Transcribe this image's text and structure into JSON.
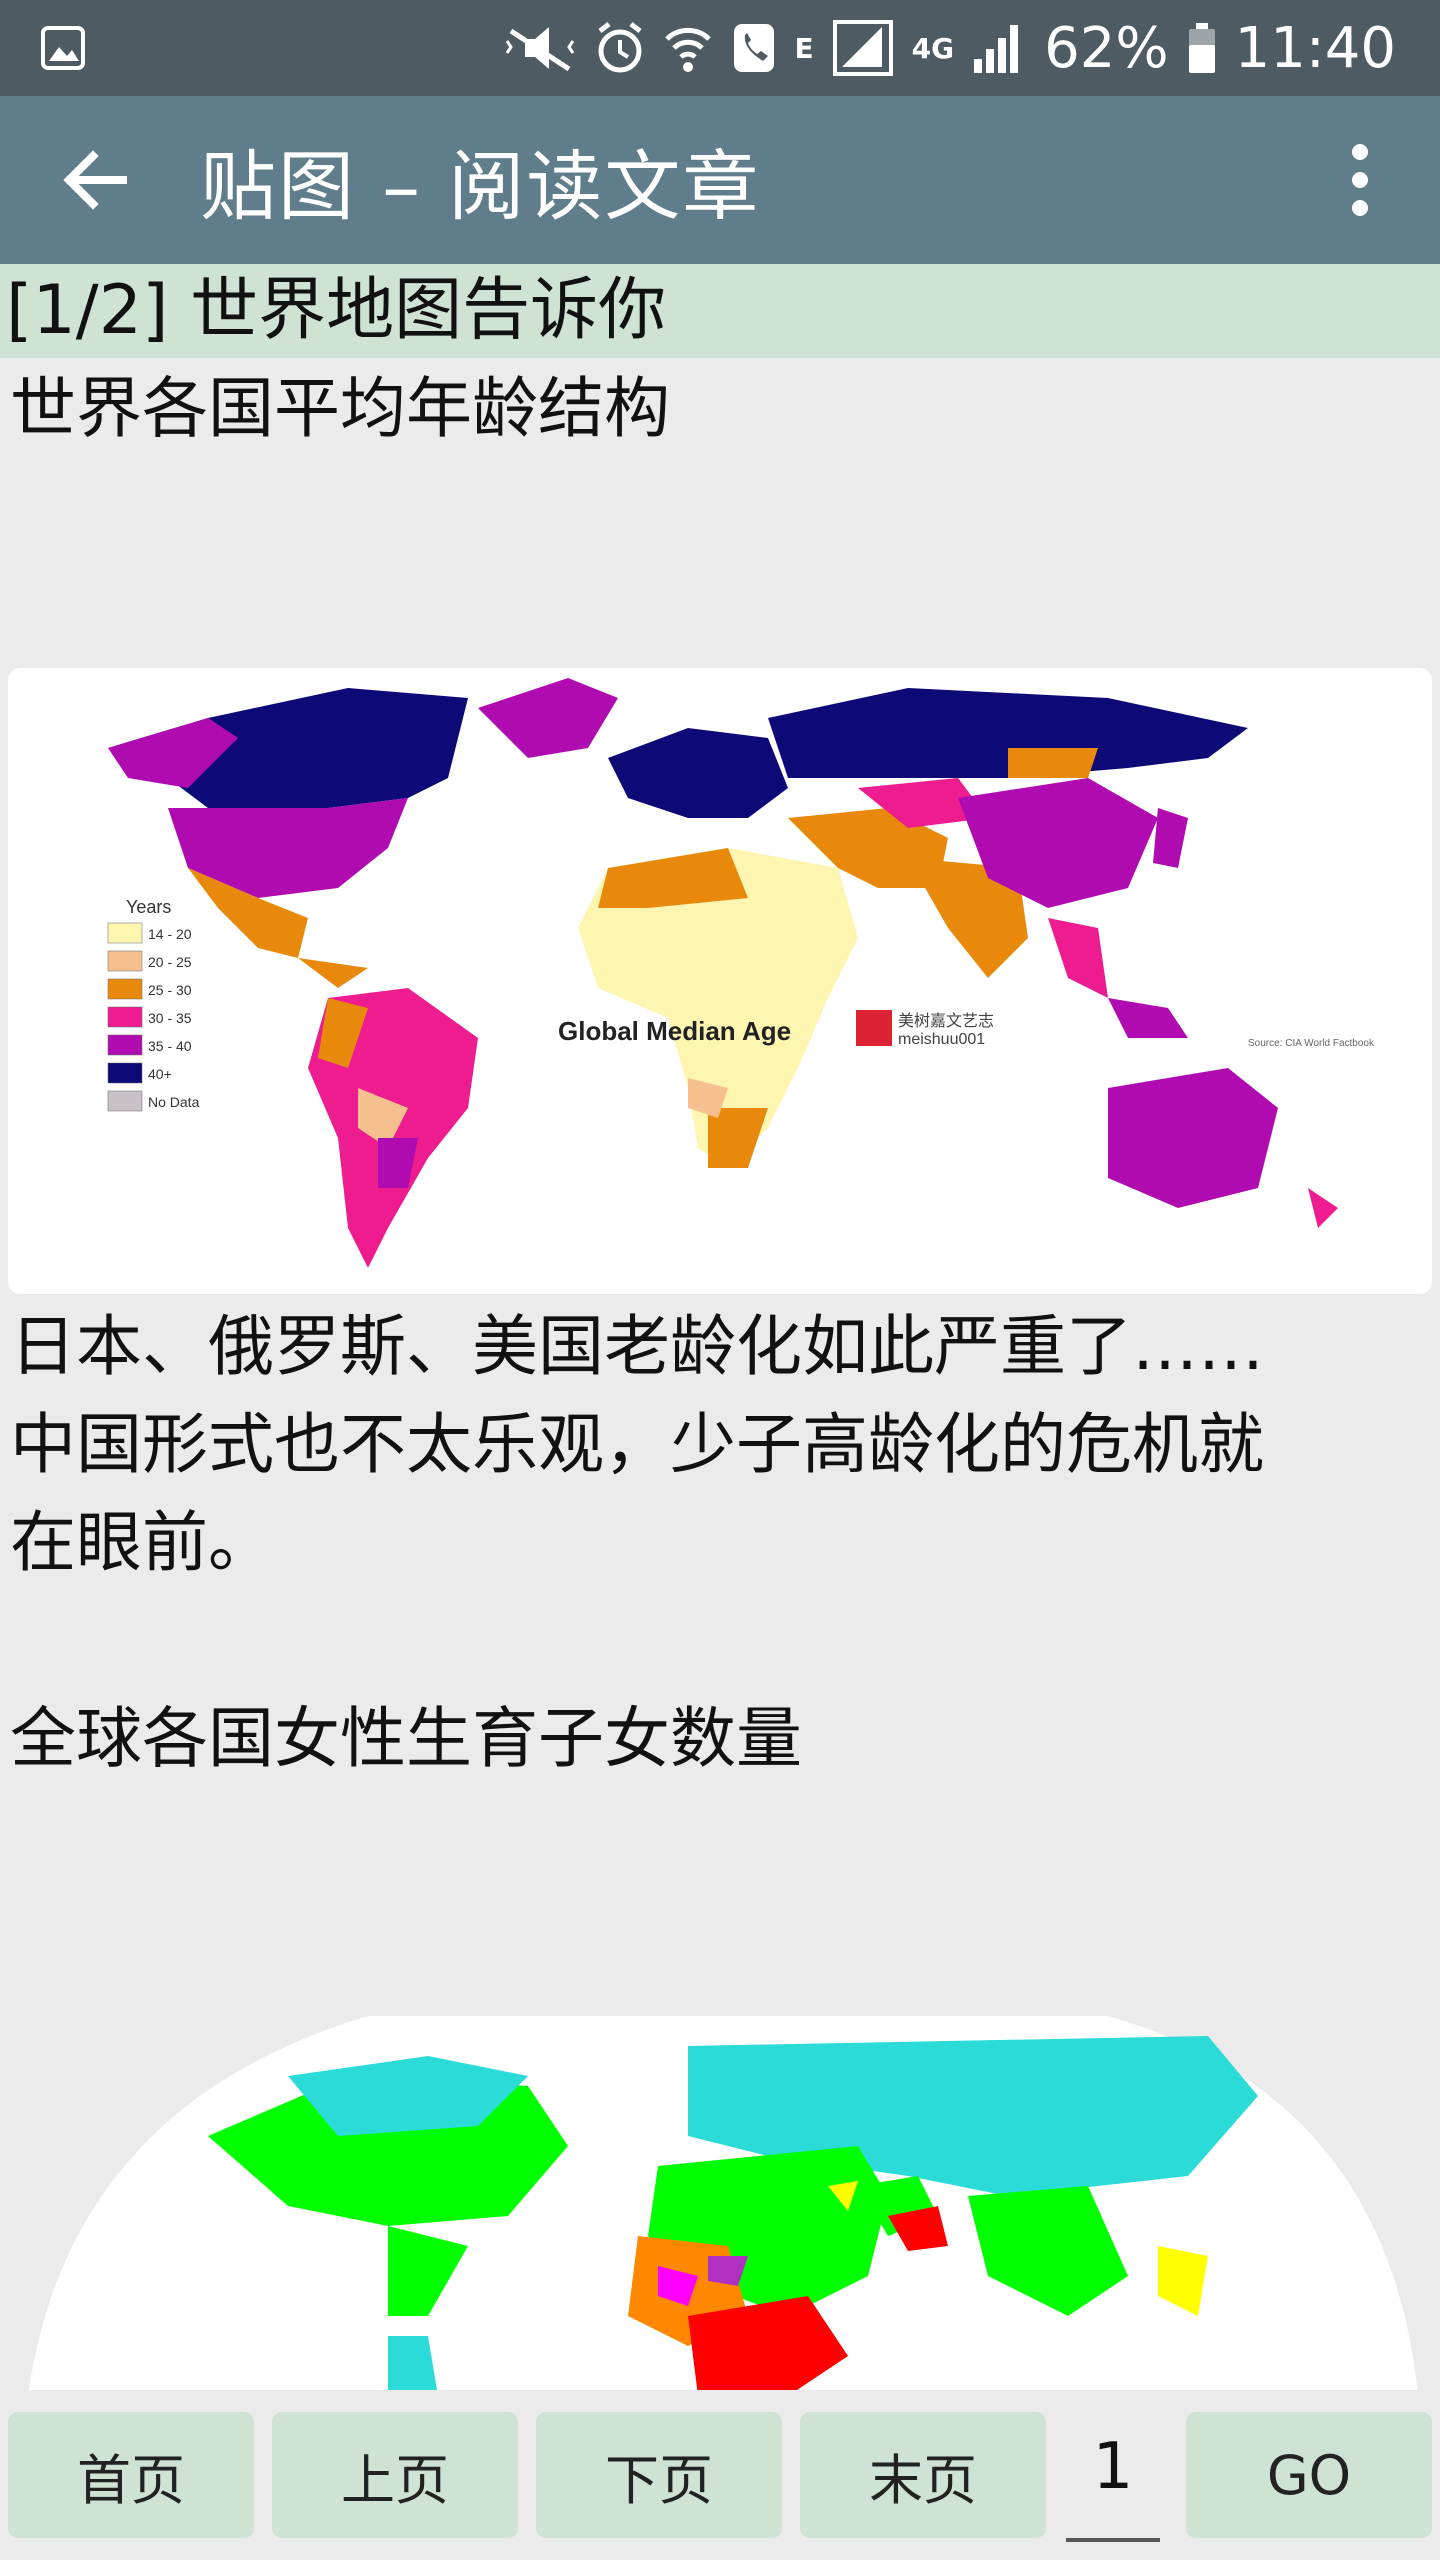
{
  "status_bar": {
    "battery": "62%",
    "time": "11:40",
    "network_e": "E",
    "network_4g": "4G"
  },
  "app_bar": {
    "title": "贴图 – 阅读文章"
  },
  "article": {
    "page_header": "[1/2] 世界地图告诉你",
    "section1_title": "世界各国平均年龄结构",
    "map1": {
      "legend_title": "Years",
      "legend": [
        {
          "label": "14 - 20",
          "color": "#fdf5b0"
        },
        {
          "label": "20 - 25",
          "color": "#f6c08e"
        },
        {
          "label": "25 - 30",
          "color": "#e8890c"
        },
        {
          "label": "30 - 35",
          "color": "#ee1c8f"
        },
        {
          "label": "35 - 40",
          "color": "#b00bb0"
        },
        {
          "label": "40+",
          "color": "#0d0a78"
        },
        {
          "label": "No Data",
          "color": "#c8c2c8"
        }
      ],
      "caption": "Global Median Age",
      "watermark_cn": "美树嘉文艺志",
      "watermark_en": "meishuu001",
      "source": "Source: CIA World Factbook"
    },
    "para1": [
      "日本、俄罗斯、美国老龄化如此严重了……",
      "中国形式也不太乐观，少子高龄化的危机就",
      "在眼前。"
    ],
    "section2_title": "全球各国女性生育子女数量"
  },
  "bottom_nav": {
    "first": "首页",
    "prev": "上页",
    "next": "下页",
    "last": "末页",
    "page_value": "1",
    "go": "GO"
  },
  "colors": {
    "status_bar": "#4f5b62",
    "app_bar": "#607d8b",
    "header_strip": "#cfe3d4",
    "button": "#cfe3d4",
    "background": "#ebebeb"
  }
}
